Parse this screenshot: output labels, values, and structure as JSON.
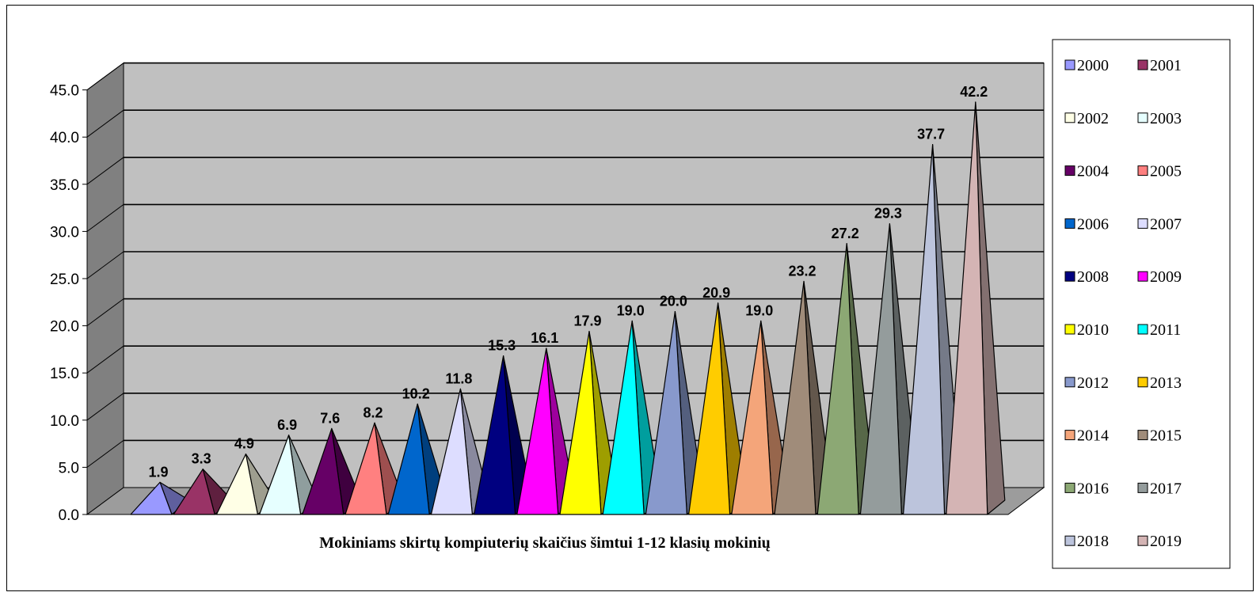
{
  "chart_data": {
    "type": "bar",
    "bar_shape": "pyramid-3d",
    "xlabel": "Mokiniams skirtų kompiuterių skaičius šimtui 1-12 klasių mokinių",
    "yaxis": {
      "min": 0,
      "max": 45,
      "step": 5,
      "tick_labels": [
        "0.0",
        "5.0",
        "10.0",
        "15.0",
        "20.0",
        "25.0",
        "30.0",
        "35.0",
        "40.0",
        "45.0"
      ]
    },
    "grid": true,
    "legend_position": "right",
    "series": [
      {
        "name": "2000",
        "value": 1.9,
        "label": "1.9",
        "color": "#9999FF"
      },
      {
        "name": "2001",
        "value": 3.3,
        "label": "3.3",
        "color": "#993366"
      },
      {
        "name": "2002",
        "value": 4.9,
        "label": "4.9",
        "color": "#FFFFE6"
      },
      {
        "name": "2003",
        "value": 6.9,
        "label": "6.9",
        "color": "#E6FFFF"
      },
      {
        "name": "2004",
        "value": 7.6,
        "label": "7.6",
        "color": "#660066"
      },
      {
        "name": "2005",
        "value": 8.2,
        "label": "8.2",
        "color": "#FF8080"
      },
      {
        "name": "2006",
        "value": 10.2,
        "label": "10.2",
        "color": "#0066CC"
      },
      {
        "name": "2007",
        "value": 11.8,
        "label": "11.8",
        "color": "#DDDDFF"
      },
      {
        "name": "2008",
        "value": 15.3,
        "label": "15.3",
        "color": "#000080"
      },
      {
        "name": "2009",
        "value": 16.1,
        "label": "16.1",
        "color": "#FF00FF"
      },
      {
        "name": "2010",
        "value": 17.9,
        "label": "17.9",
        "color": "#FFFF00"
      },
      {
        "name": "2011",
        "value": 19.0,
        "label": "19.0",
        "color": "#00FFFF"
      },
      {
        "name": "2012",
        "value": 20.0,
        "label": "20.0",
        "color": "#8899CC"
      },
      {
        "name": "2013",
        "value": 20.9,
        "label": "20.9",
        "color": "#FFCC00"
      },
      {
        "name": "2014",
        "value": 19.0,
        "label": "19.0",
        "color": "#F4A57A"
      },
      {
        "name": "2015",
        "value": 23.2,
        "label": "23.2",
        "color": "#A08C7A"
      },
      {
        "name": "2016",
        "value": 27.2,
        "label": "27.2",
        "color": "#8CA874"
      },
      {
        "name": "2017",
        "value": 29.3,
        "label": "29.3",
        "color": "#949C9C"
      },
      {
        "name": "2018",
        "value": 37.7,
        "label": "37.7",
        "color": "#BCC4DC"
      },
      {
        "name": "2019",
        "value": 42.2,
        "label": "42.2",
        "color": "#D4B4B4"
      }
    ],
    "colors": {
      "back_wall": "#C0C0C0",
      "side_wall": "#808080",
      "floor": "#9C9C9C",
      "gridline": "#000000"
    }
  }
}
